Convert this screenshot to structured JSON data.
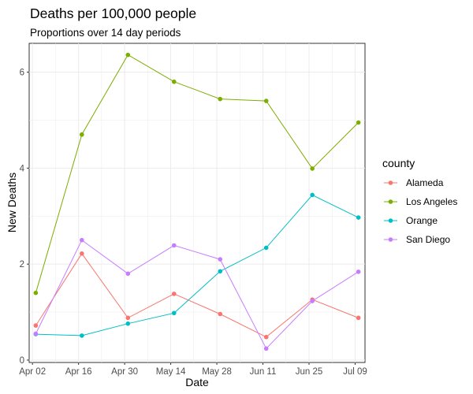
{
  "chart_data": {
    "type": "line",
    "title": "Deaths per 100,000 people",
    "subtitle": "Proportions over 14 day periods",
    "xlabel": "Date",
    "ylabel": "New Deaths",
    "x_dates": [
      "2020-04-03",
      "2020-04-17",
      "2020-05-01",
      "2020-05-15",
      "2020-05-29",
      "2020-06-12",
      "2020-06-26",
      "2020-07-10"
    ],
    "x_range": [
      "2020-04-01",
      "2020-07-12"
    ],
    "x_ticks": [
      {
        "date": "2020-04-02",
        "label": "Apr 02"
      },
      {
        "date": "2020-04-16",
        "label": "Apr 16"
      },
      {
        "date": "2020-04-30",
        "label": "Apr 30"
      },
      {
        "date": "2020-05-14",
        "label": "May 14"
      },
      {
        "date": "2020-05-28",
        "label": "May 28"
      },
      {
        "date": "2020-06-11",
        "label": "Jun 11"
      },
      {
        "date": "2020-06-25",
        "label": "Jun 25"
      },
      {
        "date": "2020-07-09",
        "label": "Jul 09"
      }
    ],
    "ylim": [
      -0.05,
      6.6
    ],
    "y_ticks": [
      0,
      2,
      4,
      6
    ],
    "grid": true,
    "legend_title": "county",
    "legend_position": "right",
    "series": [
      {
        "name": "Alameda",
        "color": "#F8766D",
        "values": [
          0.72,
          2.22,
          0.88,
          1.38,
          0.96,
          0.48,
          1.26,
          0.88
        ]
      },
      {
        "name": "Los Angeles",
        "color": "#7CAE00",
        "values": [
          1.4,
          4.7,
          6.36,
          5.8,
          5.44,
          5.4,
          3.99,
          4.95
        ]
      },
      {
        "name": "Orange",
        "color": "#00BFC4",
        "values": [
          0.54,
          0.51,
          0.76,
          0.98,
          1.85,
          2.34,
          3.44,
          2.97
        ]
      },
      {
        "name": "San Diego",
        "color": "#C77CFF",
        "values": [
          0.55,
          2.5,
          1.8,
          2.39,
          2.1,
          0.24,
          1.23,
          1.84
        ]
      }
    ]
  }
}
